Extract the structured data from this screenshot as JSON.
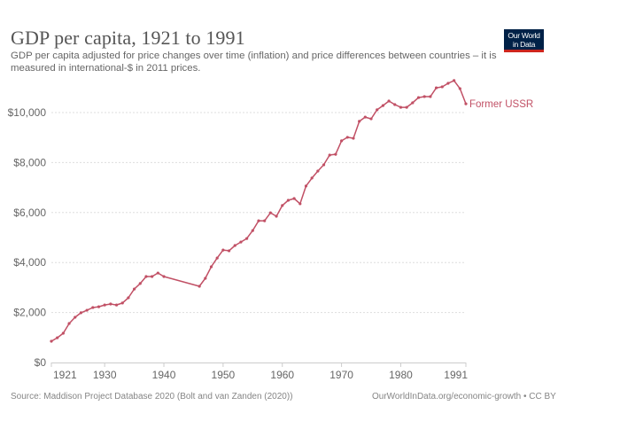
{
  "header": {
    "title": "GDP per capita, 1921 to 1991",
    "subtitle": "GDP per capita adjusted for price changes over time (inflation) and price differences between countries – it is measured in international-$ in 2011 prices."
  },
  "logo": {
    "line1": "Our World",
    "line2": "in Data",
    "bg_color": "#002147",
    "accent_color": "#ce261e"
  },
  "footer": {
    "source": "Source: Maddison Project Database 2020 (Bolt and van Zanden (2020))",
    "license": "OurWorldInData.org/economic-growth • CC BY"
  },
  "chart_data": {
    "type": "line",
    "title": "GDP per capita, 1921 to 1991",
    "xlabel": "",
    "ylabel": "",
    "xlim": [
      1921,
      1991
    ],
    "ylim": [
      0,
      10000
    ],
    "x_ticks": [
      1921,
      1930,
      1940,
      1950,
      1960,
      1970,
      1980,
      1991
    ],
    "x_tick_labels": [
      "1921",
      "1930",
      "1940",
      "1950",
      "1960",
      "1970",
      "1980",
      "1991"
    ],
    "y_ticks": [
      0,
      2000,
      4000,
      6000,
      8000,
      10000
    ],
    "y_tick_labels": [
      "$0",
      "$2,000",
      "$4,000",
      "$6,000",
      "$8,000",
      "$10,000"
    ],
    "grid": "horizontal-dotted",
    "legend": "inline-right-end",
    "series": [
      {
        "name": "Former USSR",
        "color": "#c15065",
        "points": [
          [
            1921,
            850
          ],
          [
            1922,
            990
          ],
          [
            1923,
            1170
          ],
          [
            1924,
            1560
          ],
          [
            1925,
            1810
          ],
          [
            1926,
            1990
          ],
          [
            1927,
            2090
          ],
          [
            1928,
            2200
          ],
          [
            1929,
            2230
          ],
          [
            1930,
            2300
          ],
          [
            1931,
            2340
          ],
          [
            1932,
            2300
          ],
          [
            1933,
            2380
          ],
          [
            1934,
            2590
          ],
          [
            1935,
            2940
          ],
          [
            1936,
            3160
          ],
          [
            1937,
            3440
          ],
          [
            1938,
            3440
          ],
          [
            1939,
            3580
          ],
          [
            1940,
            3440
          ],
          [
            1946,
            3050
          ],
          [
            1947,
            3370
          ],
          [
            1948,
            3830
          ],
          [
            1949,
            4180
          ],
          [
            1950,
            4500
          ],
          [
            1951,
            4470
          ],
          [
            1952,
            4680
          ],
          [
            1953,
            4820
          ],
          [
            1954,
            4960
          ],
          [
            1955,
            5280
          ],
          [
            1956,
            5670
          ],
          [
            1957,
            5670
          ],
          [
            1958,
            5990
          ],
          [
            1959,
            5850
          ],
          [
            1960,
            6280
          ],
          [
            1961,
            6490
          ],
          [
            1962,
            6560
          ],
          [
            1963,
            6350
          ],
          [
            1964,
            7060
          ],
          [
            1965,
            7380
          ],
          [
            1966,
            7660
          ],
          [
            1967,
            7910
          ],
          [
            1968,
            8300
          ],
          [
            1969,
            8330
          ],
          [
            1970,
            8870
          ],
          [
            1971,
            9010
          ],
          [
            1972,
            8970
          ],
          [
            1973,
            9650
          ],
          [
            1974,
            9820
          ],
          [
            1975,
            9750
          ],
          [
            1976,
            10110
          ],
          [
            1977,
            10280
          ],
          [
            1978,
            10460
          ],
          [
            1979,
            10320
          ],
          [
            1980,
            10210
          ],
          [
            1981,
            10210
          ],
          [
            1982,
            10390
          ],
          [
            1983,
            10600
          ],
          [
            1984,
            10640
          ],
          [
            1985,
            10640
          ],
          [
            1986,
            10990
          ],
          [
            1987,
            11030
          ],
          [
            1988,
            11170
          ],
          [
            1989,
            11280
          ],
          [
            1990,
            10960
          ],
          [
            1991,
            10350
          ]
        ]
      }
    ]
  }
}
